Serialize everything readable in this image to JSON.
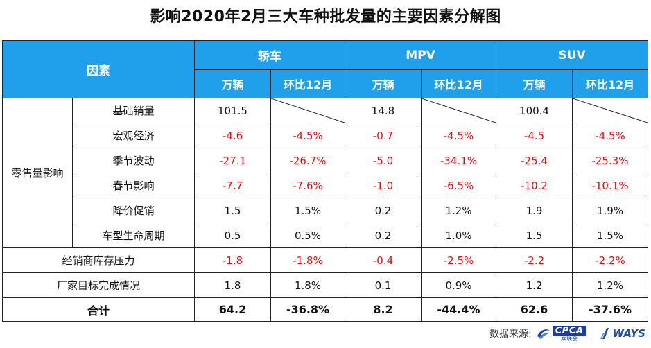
{
  "title": "影响2020年2月三大车种批发量的主要因素分解图",
  "header": {
    "factor_label": "因素",
    "groups": [
      "轿车",
      "MPV",
      "SUV"
    ],
    "sub_headers": [
      "万辆",
      "环比12月",
      "万辆",
      "环比12月",
      "万辆",
      "环比12月"
    ]
  },
  "group_labels": {
    "retail": "零售量影响"
  },
  "rows": [
    {
      "label": "基础销量",
      "values": [
        "101.5",
        "",
        "14.8",
        "",
        "100.4",
        ""
      ],
      "neg": [
        false,
        false,
        false,
        false,
        false,
        false
      ],
      "diag": [
        false,
        true,
        false,
        true,
        false,
        true
      ]
    },
    {
      "label": "宏观经济",
      "values": [
        "-4.6",
        "-4.5%",
        "-0.7",
        "-4.5%",
        "-4.5",
        "-4.5%"
      ],
      "neg": [
        true,
        true,
        true,
        true,
        true,
        true
      ]
    },
    {
      "label": "季节波动",
      "values": [
        "-27.1",
        "-26.7%",
        "-5.0",
        "-34.1%",
        "-25.4",
        "-25.3%"
      ],
      "neg": [
        true,
        true,
        true,
        true,
        true,
        true
      ]
    },
    {
      "label": "春节影响",
      "values": [
        "-7.7",
        "-7.6%",
        "-1.0",
        "-6.5%",
        "-10.2",
        "-10.1%"
      ],
      "neg": [
        true,
        true,
        true,
        true,
        true,
        true
      ]
    },
    {
      "label": "降价促销",
      "values": [
        "1.5",
        "1.5%",
        "0.2",
        "1.2%",
        "1.9",
        "1.9%"
      ],
      "neg": [
        false,
        false,
        false,
        false,
        false,
        false
      ]
    },
    {
      "label": "车型生命周期",
      "values": [
        "0.5",
        "0.5%",
        "0.2",
        "1.0%",
        "1.5",
        "1.5%"
      ],
      "neg": [
        false,
        false,
        false,
        false,
        false,
        false
      ]
    }
  ],
  "extra_rows": [
    {
      "label": "经销商库存压力",
      "values": [
        "-1.8",
        "-1.8%",
        "-0.4",
        "-2.5%",
        "-2.2",
        "-2.2%"
      ],
      "neg": [
        true,
        true,
        true,
        true,
        true,
        true
      ]
    },
    {
      "label": "厂家目标完成情况",
      "values": [
        "1.8",
        "1.8%",
        "0.1",
        "0.9%",
        "1.2",
        "1.2%"
      ],
      "neg": [
        false,
        false,
        false,
        false,
        false,
        false
      ]
    }
  ],
  "total": {
    "label": "合计",
    "values": [
      "64.2",
      "-36.8%",
      "8.2",
      "-44.4%",
      "62.6",
      "-37.6%"
    ]
  },
  "source": {
    "label": "数据来源:",
    "cpca_text": "CPCA",
    "cpca_sub": "乘联会",
    "ways_text": "WAYS"
  },
  "colors": {
    "header_bg": "#20a0ea",
    "negative": "#e01010",
    "brand_blue": "#1a3fa0"
  }
}
